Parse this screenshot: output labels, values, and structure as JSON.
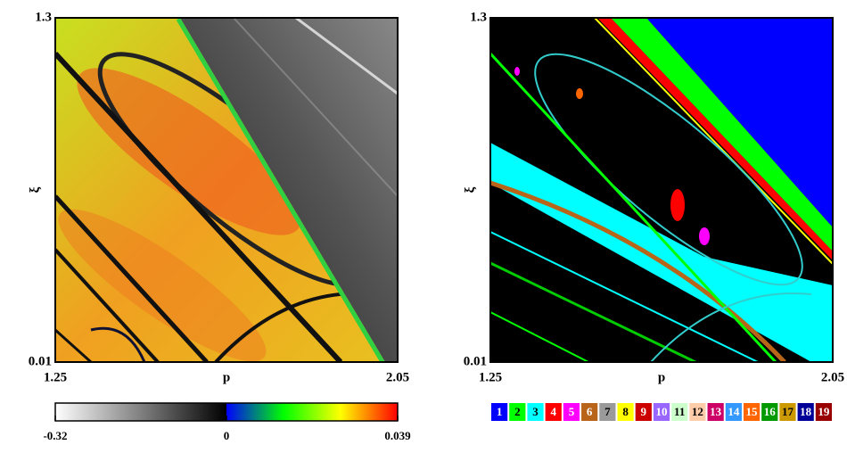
{
  "chart_data": [
    {
      "type": "heatmap",
      "x_label": "p",
      "y_label": "ξ",
      "xlim": [
        1.25,
        2.05
      ],
      "ylim": [
        0.01,
        1.3
      ],
      "xticks": [
        1.25,
        2.05
      ],
      "yticks": [
        0.01,
        1.3
      ],
      "colorbar": {
        "lim": [
          -0.32,
          0.039
        ],
        "ticks": [
          -0.32,
          0,
          0.039
        ],
        "negative_colors": [
          "#ffffff",
          "#000000"
        ],
        "positive_colors": [
          "#0000ff",
          "#00ff00",
          "#ffff00",
          "#ff0000"
        ]
      }
    },
    {
      "type": "heatmap",
      "x_label": "p",
      "y_label": "ξ",
      "xlim": [
        1.25,
        2.05
      ],
      "ylim": [
        0.01,
        1.3
      ],
      "xticks": [
        1.25,
        2.05
      ],
      "yticks": [
        0.01,
        1.3
      ],
      "legend": {
        "labels": [
          "1",
          "2",
          "3",
          "4",
          "5",
          "6",
          "7",
          "8",
          "9",
          "10",
          "11",
          "12",
          "13",
          "14",
          "15",
          "16",
          "17",
          "18",
          "19"
        ],
        "colors": [
          "#0000ff",
          "#00ff00",
          "#00ffff",
          "#ff0000",
          "#ff00ff",
          "#b8651a",
          "#9a9a9a",
          "#ffff00",
          "#cc0000",
          "#9966ff",
          "#ccffcc",
          "#ffccaa",
          "#cc0066",
          "#3399ff",
          "#ff6600",
          "#009900",
          "#cc9900",
          "#000099",
          "#990000"
        ]
      }
    }
  ]
}
